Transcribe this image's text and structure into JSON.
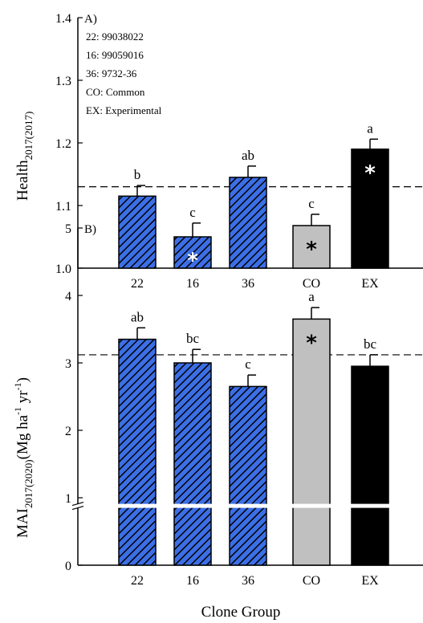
{
  "figure": {
    "xlabel_shared": "Clone Group"
  },
  "colors": {
    "blue": "#3c6fe6",
    "gray": "#c0c0c0",
    "black": "#000000",
    "white": "#ffffff"
  },
  "chart_data": [
    {
      "type": "bar",
      "panel_label": "A)",
      "legend_lines": [
        "22: 99038022",
        "16: 99059016",
        "36: 9732-36",
        "CO: Common",
        "EX: Experimental"
      ],
      "ylabel_main": "Health",
      "ylabel_sub": "2017(2017)",
      "categories": [
        "22",
        "16",
        "36",
        "CO",
        "EX"
      ],
      "values": [
        1.115,
        1.05,
        1.145,
        1.068,
        1.19
      ],
      "errors": [
        0.017,
        0.022,
        0.018,
        0.018,
        0.016
      ],
      "letters": [
        "b",
        "c",
        "ab",
        "c",
        "a"
      ],
      "asterisk": [
        false,
        true,
        false,
        true,
        true
      ],
      "fills": [
        "hatch",
        "hatch",
        "hatch",
        "gray",
        "black"
      ],
      "reference_line": 1.13,
      "ylim": [
        1.0,
        1.4
      ],
      "yticks": [
        "1.0",
        "1.1",
        "1.2",
        "1.3",
        "1.4"
      ]
    },
    {
      "type": "bar",
      "panel_label": "B)",
      "ylabel_main": "MAI",
      "ylabel_sub": "2017(2020)",
      "ylabel_units": "(Mg ha",
      "ylabel_exp1": "-1",
      "ylabel_mid": " yr",
      "ylabel_exp2": "-1",
      "ylabel_end": ")",
      "categories": [
        "22",
        "16",
        "36",
        "CO",
        "EX"
      ],
      "values": [
        3.35,
        3.0,
        2.65,
        3.65,
        2.95
      ],
      "errors": [
        0.17,
        0.2,
        0.17,
        0.17,
        0.17
      ],
      "letters": [
        "ab",
        "bc",
        "c",
        "a",
        "bc"
      ],
      "asterisk": [
        false,
        false,
        false,
        true,
        false
      ],
      "fills": [
        "hatch",
        "hatch",
        "hatch",
        "gray",
        "black"
      ],
      "reference_line": 3.12,
      "axis_break": true,
      "ylim": [
        0,
        5
      ],
      "yticks": [
        "0",
        "1",
        "2",
        "3",
        "4",
        "5"
      ]
    }
  ]
}
